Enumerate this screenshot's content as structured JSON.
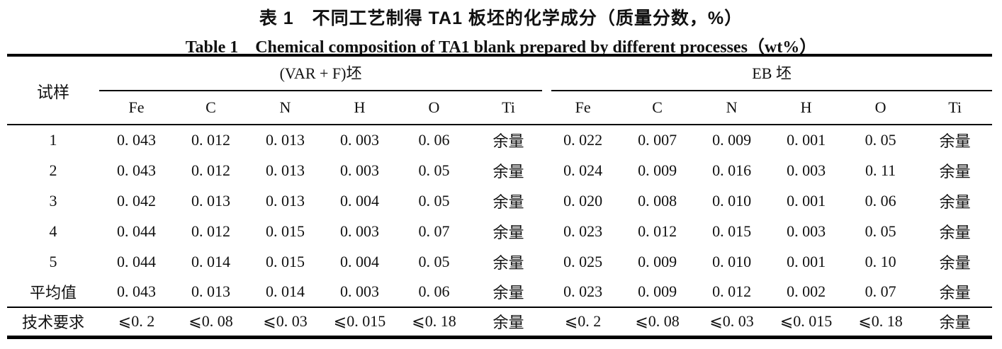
{
  "title_zh": "表 1 不同工艺制得 TA1 板坯的化学成分（质量分数，%）",
  "title_en": "Table 1 Chemical composition of TA1 blank prepared by different processes（wt%）",
  "table": {
    "corner_header": "试样",
    "groups": [
      {
        "label": "(VAR + F)坯",
        "columns": [
          "Fe",
          "C",
          "N",
          "H",
          "O",
          "Ti"
        ]
      },
      {
        "label": "EB 坯",
        "columns": [
          "Fe",
          "C",
          "N",
          "H",
          "O",
          "Ti"
        ]
      }
    ],
    "rows": [
      {
        "label": "1",
        "values": [
          "0. 043",
          "0. 012",
          "0. 013",
          "0. 003",
          "0. 06",
          "余量",
          "0. 022",
          "0. 007",
          "0. 009",
          "0. 001",
          "0. 05",
          "余量"
        ]
      },
      {
        "label": "2",
        "values": [
          "0. 043",
          "0. 012",
          "0. 013",
          "0. 003",
          "0. 05",
          "余量",
          "0. 024",
          "0. 009",
          "0. 016",
          "0. 003",
          "0. 11",
          "余量"
        ]
      },
      {
        "label": "3",
        "values": [
          "0. 042",
          "0. 013",
          "0. 013",
          "0. 004",
          "0. 05",
          "余量",
          "0. 020",
          "0. 008",
          "0. 010",
          "0. 001",
          "0. 06",
          "余量"
        ]
      },
      {
        "label": "4",
        "values": [
          "0. 044",
          "0. 012",
          "0. 015",
          "0. 003",
          "0. 07",
          "余量",
          "0. 023",
          "0. 012",
          "0. 015",
          "0. 003",
          "0. 05",
          "余量"
        ]
      },
      {
        "label": "5",
        "values": [
          "0. 044",
          "0. 014",
          "0. 015",
          "0. 004",
          "0. 05",
          "余量",
          "0. 025",
          "0. 009",
          "0. 010",
          "0. 001",
          "0. 10",
          "余量"
        ]
      },
      {
        "label": "平均值",
        "values": [
          "0. 043",
          "0. 013",
          "0. 014",
          "0. 003",
          "0. 06",
          "余量",
          "0. 023",
          "0. 009",
          "0. 012",
          "0. 002",
          "0. 07",
          "余量"
        ]
      }
    ],
    "requirement_row": {
      "label": "技术要求",
      "values": [
        "⩽0. 2",
        "⩽0. 08",
        "⩽0. 03",
        "⩽0. 015",
        "⩽0. 18",
        "余量",
        "⩽0. 2",
        "⩽0. 08",
        "⩽0. 03",
        "⩽0. 015",
        "⩽0. 18",
        "余量"
      ]
    }
  }
}
